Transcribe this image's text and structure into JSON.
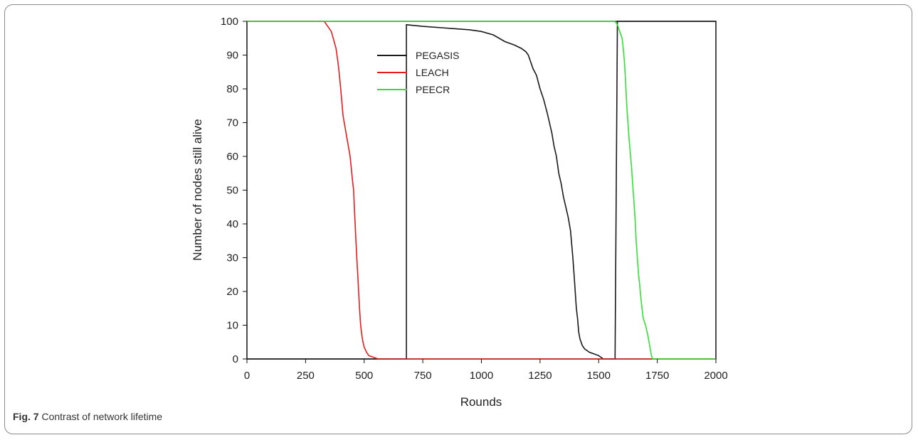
{
  "figure": {
    "caption_label": "Fig. 7",
    "caption_text": "Contrast of network lifetime"
  },
  "chart_data": {
    "type": "line",
    "xlabel": "Rounds",
    "ylabel": "Number of nodes still alive",
    "xlim": [
      0,
      2000
    ],
    "ylim": [
      0,
      100
    ],
    "xticks": [
      0,
      250,
      500,
      750,
      1000,
      1250,
      1500,
      1750,
      2000
    ],
    "yticks": [
      0,
      10,
      20,
      30,
      40,
      50,
      60,
      70,
      80,
      90,
      100
    ],
    "grid": false,
    "legend_position": "top-left-center",
    "series": [
      {
        "name": "PEGASIS",
        "color": "#1a1a1a",
        "x": [
          0,
          680,
          680,
          750,
          850,
          950,
          1000,
          1050,
          1100,
          1140,
          1170,
          1190,
          1200,
          1210,
          1220,
          1235,
          1250,
          1265,
          1280,
          1290,
          1300,
          1310,
          1320,
          1330,
          1340,
          1350,
          1360,
          1370,
          1380,
          1390,
          1395,
          1400,
          1405,
          1410,
          1415,
          1420,
          1430,
          1440,
          1450,
          1460,
          1480,
          1500,
          1510,
          1520,
          1530,
          1540,
          1550,
          1560,
          1570,
          1580,
          2000
        ],
        "y": [
          0,
          0,
          99,
          98.5,
          98,
          97.5,
          97,
          96,
          94,
          93,
          92,
          91,
          90,
          88,
          86,
          84,
          80,
          77,
          73,
          70,
          67,
          63,
          60,
          55,
          52,
          48,
          45,
          42,
          38,
          30,
          25,
          20,
          15,
          12,
          8,
          6,
          4,
          3,
          2.5,
          2,
          1.5,
          1,
          0.5,
          0,
          0,
          0,
          0,
          0,
          0,
          100,
          100
        ]
      },
      {
        "name": "LEACH",
        "color": "#e51c1c",
        "x": [
          0,
          330,
          340,
          360,
          380,
          390,
          400,
          410,
          420,
          430,
          440,
          450,
          455,
          460,
          465,
          470,
          475,
          480,
          485,
          490,
          495,
          500,
          510,
          520,
          540,
          560,
          570,
          1750,
          2000
        ],
        "y": [
          100,
          100,
          99,
          97,
          92,
          87,
          80,
          72,
          68,
          64,
          60,
          53,
          50,
          42,
          35,
          28,
          22,
          15,
          10,
          7,
          5,
          3.5,
          2,
          1,
          0.5,
          0,
          0,
          0,
          0
        ]
      },
      {
        "name": "PEECR",
        "color": "#33e033",
        "x": [
          0,
          1570,
          1580,
          1590,
          1600,
          1605,
          1610,
          1615,
          1620,
          1625,
          1630,
          1635,
          1640,
          1645,
          1650,
          1655,
          1660,
          1665,
          1670,
          1675,
          1680,
          1685,
          1690,
          1700,
          1710,
          1720,
          1725,
          1730,
          1735,
          2000
        ],
        "y": [
          100,
          100,
          99,
          97,
          95,
          92,
          88,
          82,
          75,
          70,
          65,
          61,
          57,
          52,
          47,
          42,
          35,
          30,
          25,
          22,
          18,
          15,
          12,
          10,
          7,
          3,
          1,
          0,
          0,
          0
        ]
      }
    ]
  }
}
